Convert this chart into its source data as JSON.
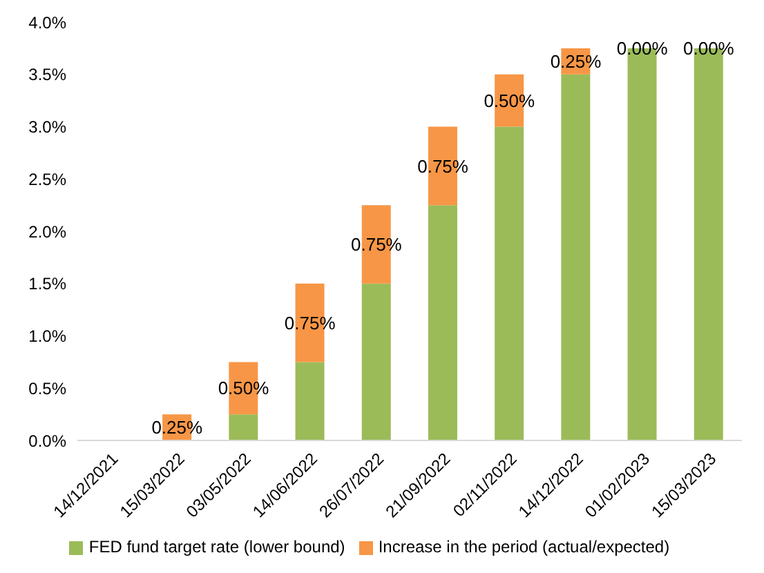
{
  "chart_data": {
    "type": "bar",
    "stacked": true,
    "categories": [
      "14/12/2021",
      "15/03/2022",
      "03/05/2022",
      "14/06/2022",
      "26/07/2022",
      "21/09/2022",
      "02/11/2022",
      "14/12/2022",
      "01/02/2023",
      "15/03/2023"
    ],
    "series": [
      {
        "name": "FED fund target rate (lower bound)",
        "color": "#9bbb59",
        "values": [
          0,
          0,
          0.25,
          0.75,
          1.5,
          2.25,
          3.0,
          3.5,
          3.75,
          3.75
        ]
      },
      {
        "name": "Increase in the period (actual/expected)",
        "color": "#f79646",
        "values": [
          0,
          0.25,
          0.5,
          0.75,
          0.75,
          0.75,
          0.5,
          0.25,
          0,
          0
        ],
        "value_labels": [
          null,
          "0.25%",
          "0.50%",
          "0.75%",
          "0.75%",
          "0.75%",
          "0.50%",
          "0.25%",
          "0.00%",
          "0.00%"
        ]
      }
    ],
    "ylim": [
      0,
      4
    ],
    "yticks": [
      {
        "value": 0,
        "label": "0.0%"
      },
      {
        "value": 0.5,
        "label": "0.5%"
      },
      {
        "value": 1,
        "label": "1.0%"
      },
      {
        "value": 1.5,
        "label": "1.5%"
      },
      {
        "value": 2,
        "label": "2.0%"
      },
      {
        "value": 2.5,
        "label": "2.5%"
      },
      {
        "value": 3,
        "label": "3.0%"
      },
      {
        "value": 3.5,
        "label": "3.5%"
      },
      {
        "value": 4,
        "label": "4.0%"
      }
    ],
    "grid": false,
    "legend": "bottom"
  }
}
